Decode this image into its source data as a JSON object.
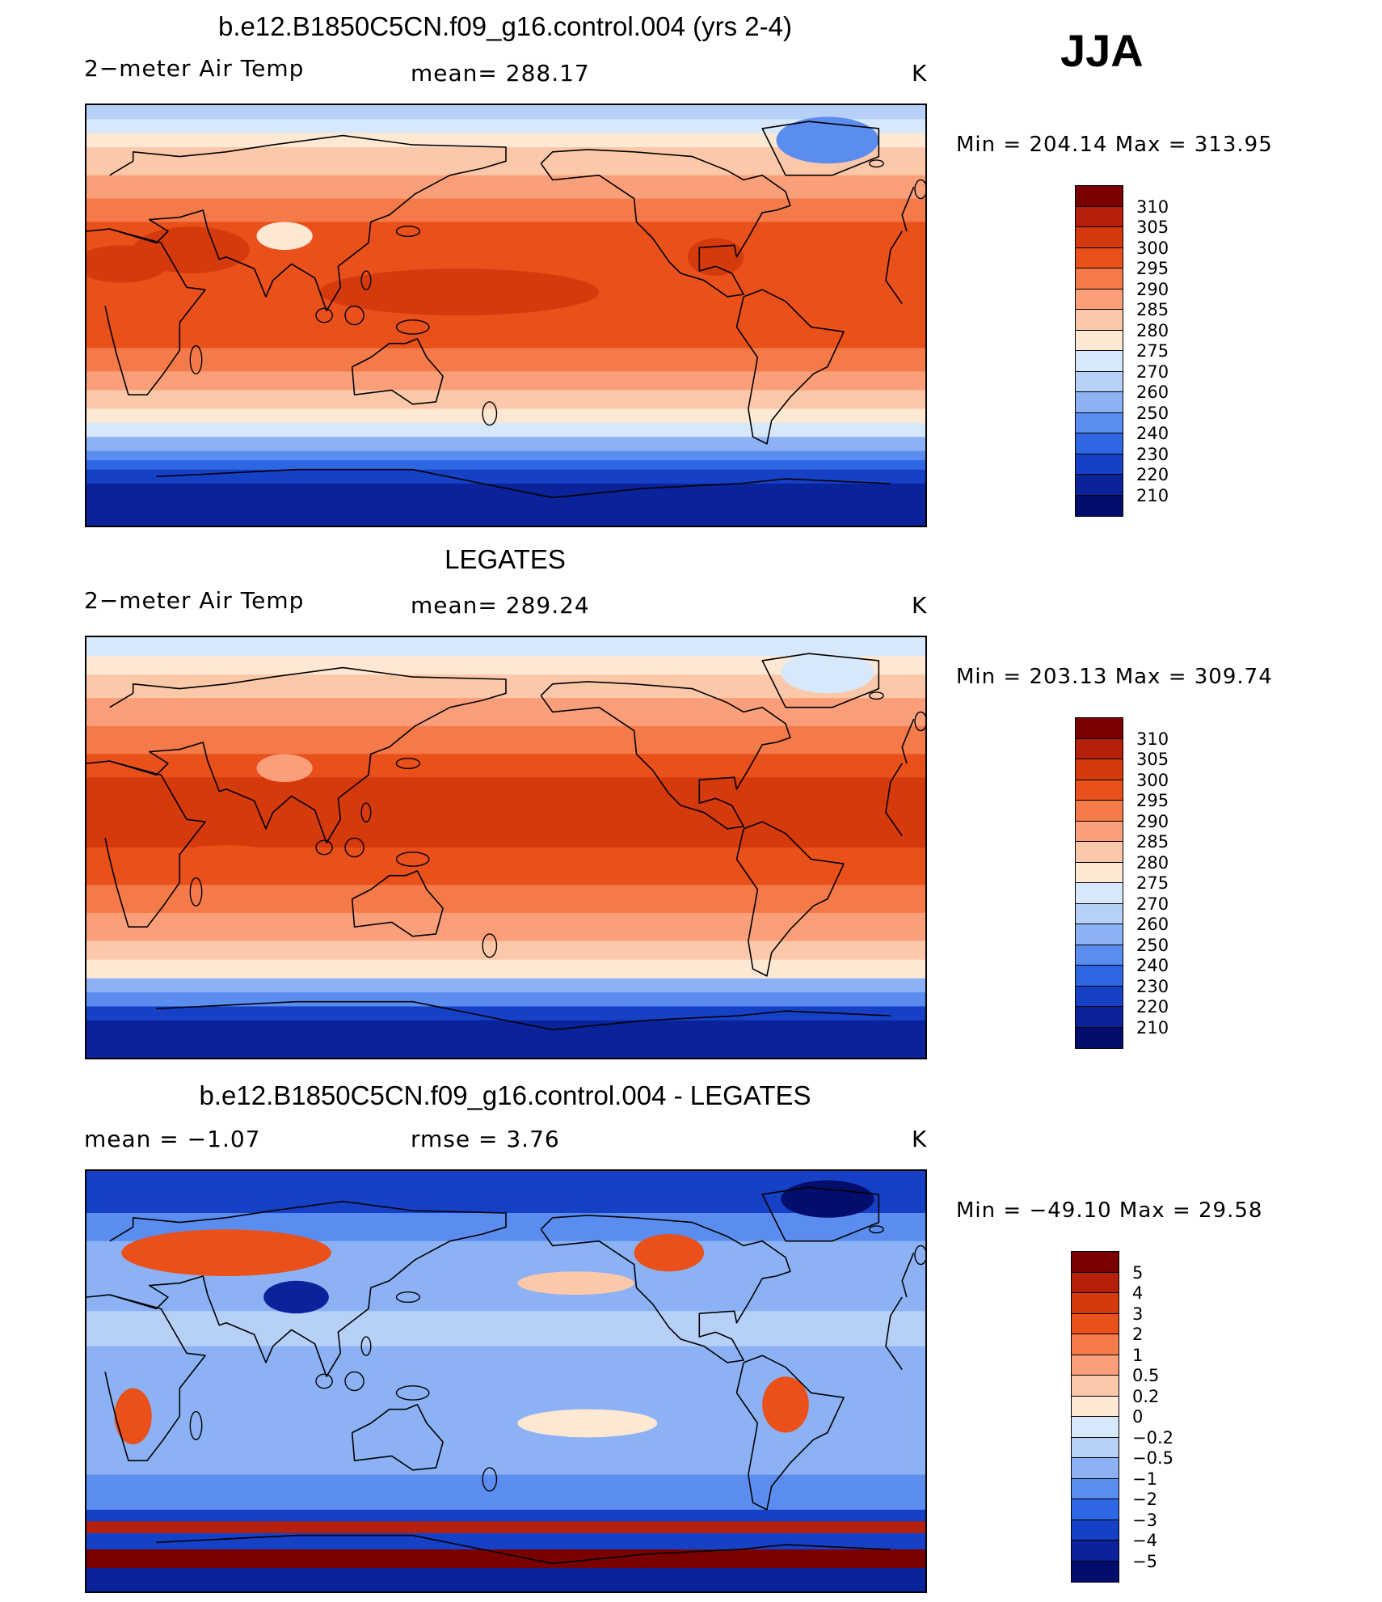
{
  "season": "JJA",
  "panels": [
    {
      "id": "model",
      "title": "b.e12.B1850C5CN.f09_g16.control.004 (yrs 2-4)",
      "left_label": "2−meter Air Temp",
      "center_label": "mean=  288.17",
      "units": "K",
      "minmax": "Min  =  204.14  Max  =  313.95",
      "levels": [
        "310",
        "305",
        "300",
        "295",
        "290",
        "285",
        "280",
        "275",
        "270",
        "260",
        "250",
        "240",
        "230",
        "220",
        "210"
      ],
      "colors": [
        "#7a0000",
        "#b5200a",
        "#d53a0c",
        "#e9501a",
        "#f57a4a",
        "#fb9f7b",
        "#fcc8aa",
        "#fde8d4",
        "#d8e8fb",
        "#b6d0f8",
        "#8cb2f5",
        "#5b8df0",
        "#2f66e4",
        "#1640c6",
        "#0a229a",
        "#030d6b"
      ],
      "bands": [
        {
          "lat": 90,
          "c": 9
        },
        {
          "lat": 84,
          "c": 8
        },
        {
          "lat": 78,
          "c": 7
        },
        {
          "lat": 72,
          "c": 6
        },
        {
          "lat": 60,
          "c": 5
        },
        {
          "lat": 50,
          "c": 4
        },
        {
          "lat": 40,
          "c": 3
        },
        {
          "lat": 30,
          "c": 3
        },
        {
          "lat": 14,
          "c": 3
        },
        {
          "lat": 0,
          "c": 3
        },
        {
          "lat": -14,
          "c": 4
        },
        {
          "lat": -24,
          "c": 5
        },
        {
          "lat": -32,
          "c": 6
        },
        {
          "lat": -40,
          "c": 7
        },
        {
          "lat": -46,
          "c": 8
        },
        {
          "lat": -52,
          "c": 10
        },
        {
          "lat": -58,
          "c": 11
        },
        {
          "lat": -62,
          "c": 12
        },
        {
          "lat": -66,
          "c": 13
        },
        {
          "lat": -72,
          "c": 14
        },
        {
          "lat": -90,
          "c": 15
        }
      ],
      "blobs": [
        {
          "lon": 85,
          "lat": 34,
          "rx": 12,
          "ry": 6,
          "c": 7
        },
        {
          "lon": 45,
          "lat": 28,
          "rx": 25,
          "ry": 10,
          "c": 2
        },
        {
          "lon": 160,
          "lat": 10,
          "rx": 60,
          "ry": 10,
          "c": 2
        },
        {
          "lon": 15,
          "lat": 22,
          "rx": 20,
          "ry": 8,
          "c": 2
        },
        {
          "lon": 318,
          "lat": 75,
          "rx": 22,
          "ry": 10,
          "c": 11
        },
        {
          "lon": 270,
          "lat": 25,
          "rx": 12,
          "ry": 8,
          "c": 2
        }
      ]
    },
    {
      "id": "obs",
      "title": "LEGATES",
      "left_label": "2−meter Air Temp",
      "center_label": "mean=  289.24",
      "units": "K",
      "minmax": "Min  =  203.13  Max  =  309.74",
      "levels": [
        "310",
        "305",
        "300",
        "295",
        "290",
        "285",
        "280",
        "275",
        "270",
        "260",
        "250",
        "240",
        "230",
        "220",
        "210"
      ],
      "colors": [
        "#7a0000",
        "#b5200a",
        "#d53a0c",
        "#e9501a",
        "#f57a4a",
        "#fb9f7b",
        "#fcc8aa",
        "#fde8d4",
        "#d8e8fb",
        "#b6d0f8",
        "#8cb2f5",
        "#5b8df0",
        "#2f66e4",
        "#1640c6",
        "#0a229a",
        "#030d6b"
      ],
      "bands": [
        {
          "lat": 90,
          "c": 8
        },
        {
          "lat": 82,
          "c": 7
        },
        {
          "lat": 74,
          "c": 6
        },
        {
          "lat": 64,
          "c": 5
        },
        {
          "lat": 52,
          "c": 4
        },
        {
          "lat": 40,
          "c": 3
        },
        {
          "lat": 30,
          "c": 2
        },
        {
          "lat": 14,
          "c": 2
        },
        {
          "lat": 0,
          "c": 3
        },
        {
          "lat": -16,
          "c": 4
        },
        {
          "lat": -28,
          "c": 5
        },
        {
          "lat": -40,
          "c": 6
        },
        {
          "lat": -48,
          "c": 7
        },
        {
          "lat": -56,
          "c": 10
        },
        {
          "lat": -62,
          "c": 11
        },
        {
          "lat": -68,
          "c": 13
        },
        {
          "lat": -74,
          "c": 14
        },
        {
          "lat": -90,
          "c": 15
        }
      ],
      "blobs": [
        {
          "lon": 85,
          "lat": 34,
          "rx": 12,
          "ry": 6,
          "c": 5
        },
        {
          "lon": 318,
          "lat": 75,
          "rx": 20,
          "ry": 9,
          "c": 8
        },
        {
          "lon": 60,
          "lat": -5,
          "rx": 25,
          "ry": 6,
          "c": 3
        }
      ]
    },
    {
      "id": "diff",
      "title": "b.e12.B1850C5CN.f09_g16.control.004 - LEGATES",
      "left_label": "mean =    −1.07",
      "center_label": "rmse =     3.76",
      "units": "K",
      "minmax": "Min  =  −49.10  Max  =    29.58",
      "levels": [
        "5",
        "4",
        "3",
        "2",
        "1",
        "0.5",
        "0.2",
        "0",
        "−0.2",
        "−0.5",
        "−1",
        "−2",
        "−3",
        "−4",
        "−5"
      ],
      "colors": [
        "#7a0000",
        "#b5200a",
        "#d53a0c",
        "#e9501a",
        "#f57a4a",
        "#fb9f7b",
        "#fcc8aa",
        "#fde8d4",
        "#d8e8fb",
        "#b6d0f8",
        "#8cb2f5",
        "#5b8df0",
        "#2f66e4",
        "#1640c6",
        "#0a229a",
        "#030d6b"
      ],
      "bands": [
        {
          "lat": 90,
          "c": 13
        },
        {
          "lat": 72,
          "c": 11
        },
        {
          "lat": 60,
          "c": 10
        },
        {
          "lat": 45,
          "c": 10
        },
        {
          "lat": 30,
          "c": 9
        },
        {
          "lat": 15,
          "c": 10
        },
        {
          "lat": 0,
          "c": 10
        },
        {
          "lat": -20,
          "c": 10
        },
        {
          "lat": -40,
          "c": 11
        },
        {
          "lat": -55,
          "c": 13
        },
        {
          "lat": -60,
          "c": 1
        },
        {
          "lat": -65,
          "c": 13
        },
        {
          "lat": -72,
          "c": 0
        },
        {
          "lat": -80,
          "c": 14
        },
        {
          "lat": -90,
          "c": 15
        }
      ],
      "blobs": [
        {
          "lon": 60,
          "lat": 55,
          "rx": 45,
          "ry": 10,
          "c": 3
        },
        {
          "lon": 90,
          "lat": 36,
          "rx": 14,
          "ry": 7,
          "c": 14
        },
        {
          "lon": 210,
          "lat": 42,
          "rx": 25,
          "ry": 5,
          "c": 6
        },
        {
          "lon": 215,
          "lat": -18,
          "rx": 30,
          "ry": 6,
          "c": 7
        },
        {
          "lon": 318,
          "lat": 78,
          "rx": 20,
          "ry": 8,
          "c": 15
        },
        {
          "lon": 300,
          "lat": -10,
          "rx": 10,
          "ry": 12,
          "c": 3
        },
        {
          "lon": 250,
          "lat": 55,
          "rx": 15,
          "ry": 8,
          "c": 3
        },
        {
          "lon": 20,
          "lat": -15,
          "rx": 8,
          "ry": 12,
          "c": 3
        }
      ]
    }
  ]
}
